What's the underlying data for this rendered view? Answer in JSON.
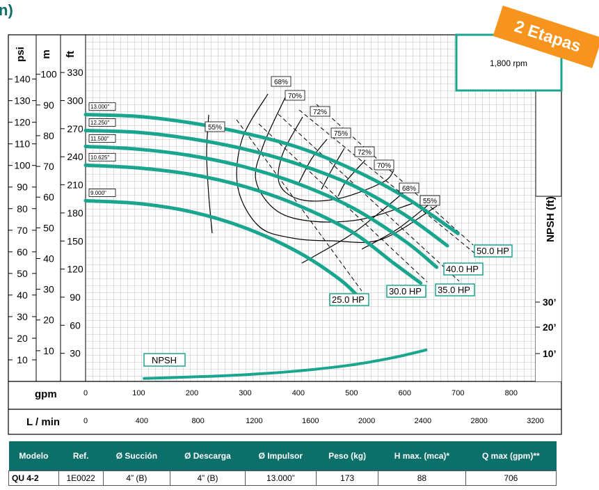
{
  "header": {
    "title": "n)",
    "badge": "2 Etapas"
  },
  "chart_data": {
    "type": "line",
    "rpm_label": "1,800 rpm",
    "x_axes": [
      {
        "label": "gpm",
        "ticks": [
          "0",
          "100",
          "200",
          "300",
          "400",
          "500",
          "600",
          "700",
          "800"
        ]
      },
      {
        "label": "L / min",
        "ticks": [
          "0",
          "400",
          "800",
          "1200",
          "1600",
          "2000",
          "2400",
          "2800",
          "3200"
        ]
      }
    ],
    "y_axes": [
      {
        "label": "psi",
        "ticks": [
          "10",
          "20",
          "30",
          "40",
          "50",
          "60",
          "70",
          "80",
          "90",
          "100",
          "110",
          "120",
          "130",
          "140"
        ]
      },
      {
        "label": "m",
        "ticks": [
          "10",
          "20",
          "30",
          "40",
          "50",
          "60",
          "70",
          "80",
          "90",
          "100"
        ]
      },
      {
        "label": "ft",
        "ticks": [
          "30",
          "60",
          "90",
          "120",
          "150",
          "180",
          "210",
          "240",
          "270",
          "300",
          "330"
        ]
      },
      {
        "label": "NPSH (ft)",
        "ticks": [
          "10’",
          "20’",
          "30’"
        ]
      }
    ],
    "xlim": [
      0,
      850
    ],
    "ylim_ft": [
      0,
      360
    ],
    "series": [
      {
        "name": "13.000\"",
        "x": [
          0,
          100,
          200,
          300,
          400,
          500,
          600,
          700
        ],
        "y": [
          285,
          283,
          276,
          265,
          250,
          227,
          197,
          158
        ]
      },
      {
        "name": "12.250\"",
        "x": [
          0,
          100,
          200,
          300,
          400,
          500,
          600,
          680
        ],
        "y": [
          268,
          266,
          259,
          248,
          232,
          210,
          178,
          145
        ]
      },
      {
        "name": "11.500\"",
        "x": [
          0,
          100,
          200,
          300,
          400,
          500,
          600,
          660
        ],
        "y": [
          251,
          248,
          241,
          229,
          211,
          186,
          150,
          122
        ]
      },
      {
        "name": "10.625\"",
        "x": [
          0,
          100,
          200,
          300,
          400,
          500,
          580,
          630
        ],
        "y": [
          231,
          228,
          221,
          208,
          188,
          160,
          126,
          105
        ]
      },
      {
        "name": "9.000\"",
        "x": [
          0,
          100,
          200,
          300,
          400,
          480,
          520
        ],
        "y": [
          193,
          190,
          181,
          164,
          138,
          108,
          86
        ]
      }
    ],
    "hp_lines": [
      "25.0 HP",
      "30.0 HP",
      "35.0 HP",
      "40.0 HP",
      "50.0 HP"
    ],
    "efficiency_labels": [
      "55%",
      "68%",
      "70%",
      "72%",
      "75%",
      "72%",
      "70%",
      "68%",
      "55%"
    ],
    "npsh_curve": {
      "name": "NPSH",
      "x": [
        110,
        200,
        300,
        400,
        500,
        580,
        640
      ],
      "y": [
        2,
        3,
        4.5,
        7,
        11,
        16,
        21
      ]
    }
  },
  "table": {
    "headers": [
      "Modelo",
      "Ref.",
      "Ø Succión",
      "Ø Descarga",
      "Ø  Impulsor",
      "Peso (kg)",
      "H max. (mca)*",
      "Q max (gpm)**"
    ],
    "rows": [
      [
        "QU 4-2",
        "1E0022",
        "4” (B)",
        "4” (B)",
        "13.000”",
        "173",
        "88",
        "706"
      ]
    ]
  }
}
